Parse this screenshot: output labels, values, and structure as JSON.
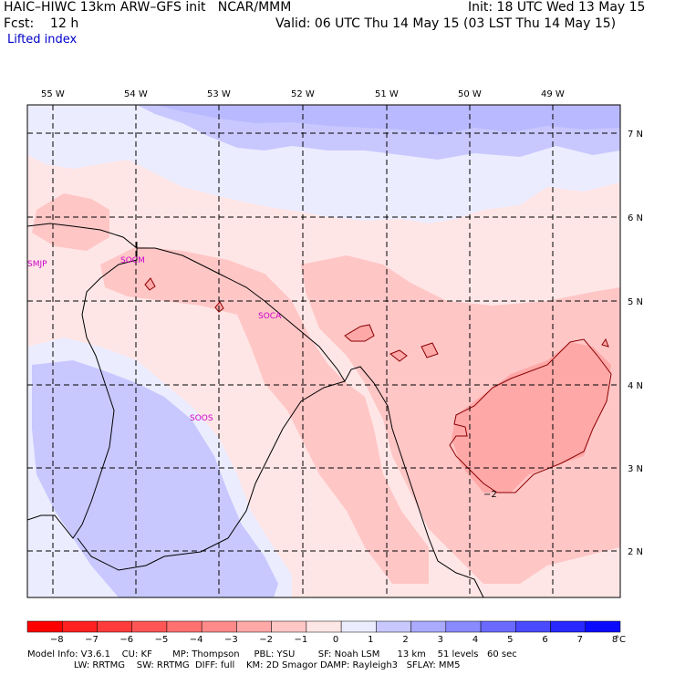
{
  "header": {
    "left_line1": "HAIC–HIWC 13km ARW–GFS init   NCAR/MMM",
    "left_line2": "Fcst:    12 h",
    "right_line1": "Init: 18 UTC Wed 13 May 15",
    "right_line2": "Valid: 06 UTC Thu 14 May 15 (03 LST Thu 14 May 15)",
    "field_name": "Lifted index"
  },
  "map": {
    "lon_labels": [
      "55 W",
      "54 W",
      "53 W",
      "52 W",
      "51 W",
      "50 W",
      "49 W"
    ],
    "lat_labels": [
      "7 N",
      "6 N",
      "5 N",
      "4 N",
      "3 N",
      "2 N"
    ],
    "stations": [
      "SMJP",
      "SOCM",
      "SOCA",
      "SOOS"
    ],
    "contour_label": "−2"
  },
  "colorbar": {
    "labels": [
      "−8",
      "−7",
      "−6",
      "−5",
      "−4",
      "−3",
      "−2",
      "−1",
      "0",
      "1",
      "2",
      "3",
      "4",
      "5",
      "6",
      "7",
      "8"
    ],
    "unit": "°C",
    "colors": [
      "#ff0000",
      "#ff2020",
      "#ff3b3b",
      "#ff5555",
      "#ff7070",
      "#ff8a8a",
      "#ffa8a8",
      "#ffc6c6",
      "#ffe6e6",
      "#ececff",
      "#c8c8ff",
      "#aaaaff",
      "#8a8aff",
      "#6a6aff",
      "#4a4aff",
      "#2828ff",
      "#0a0aff"
    ]
  },
  "footer": {
    "line1": "Model Info: V3.6.1    CU: KF       MP: Thompson     PBL: YSU        SF: Noah LSM      13 km    51 levels   60 sec",
    "line2": "                LW: RRTMG    SW: RRTMG  DIFF: full    KM: 2D Smagor DAMP: Rayleigh3   SFLAY: MM5"
  }
}
